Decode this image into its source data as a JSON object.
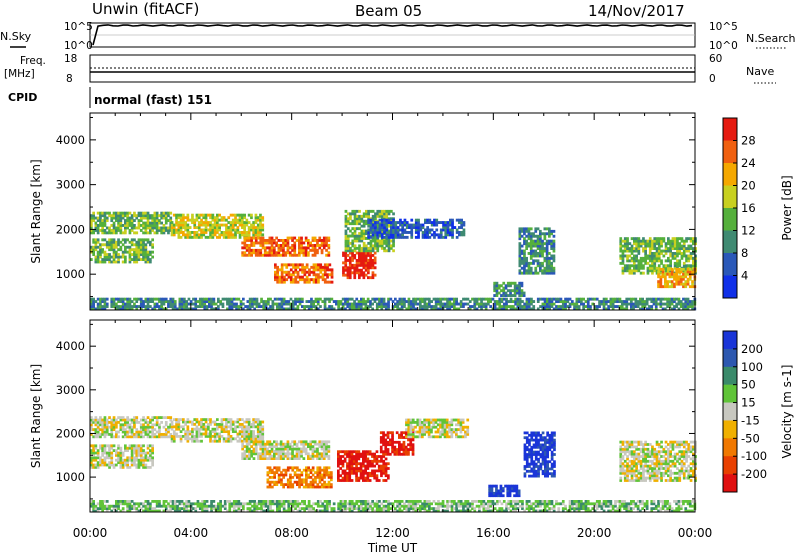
{
  "header": {
    "station": "Unwin (fitACF)",
    "beam": "Beam 05",
    "date": "14/Nov/2017"
  },
  "control_panels": {
    "nsky_label": "N.Sky",
    "nsky_ticks": [
      "10^5",
      "10^0"
    ],
    "nsearch_label": "N.Search",
    "nsearch_ticks": [
      "10^5",
      "10^0"
    ],
    "freq_label": "Freq.",
    "freq_unit": "[MHz]",
    "freq_ticks": [
      "18",
      "8"
    ],
    "nave_label": "Nave",
    "nave_ticks": [
      "60",
      "0"
    ],
    "cpid_label": "CPID",
    "cpid_value": "normal (fast) 151"
  },
  "chart_data": [
    {
      "type": "heatmap",
      "name": "power-panel",
      "xlabel": "",
      "ylabel": "Slant Range [km]",
      "x_range_hours": [
        0,
        24
      ],
      "ylim": [
        200,
        4600
      ],
      "yticks": [
        1000,
        2000,
        3000,
        4000
      ],
      "colorbar": {
        "label": "Power [dB]",
        "ticks": [
          "4",
          "8",
          "12",
          "16",
          "20",
          "24",
          "28"
        ],
        "colors": [
          "#1030e8",
          "#2a58b8",
          "#3f8a72",
          "#55b03c",
          "#c8d020",
          "#f5a800",
          "#f06010",
          "#e51a10"
        ]
      },
      "echo_regions": [
        {
          "t": [
            0.0,
            24.0
          ],
          "r": [
            200,
            450
          ],
          "level": 2
        },
        {
          "t": [
            0.0,
            3.2
          ],
          "r": [
            1900,
            2350
          ],
          "level": 3
        },
        {
          "t": [
            0.0,
            2.5
          ],
          "r": [
            1250,
            1750
          ],
          "level": 3
        },
        {
          "t": [
            3.2,
            6.8
          ],
          "r": [
            1800,
            2350
          ],
          "level": 4
        },
        {
          "t": [
            6.0,
            9.5
          ],
          "r": [
            1400,
            1800
          ],
          "level": 6
        },
        {
          "t": [
            7.3,
            9.6
          ],
          "r": [
            800,
            1200
          ],
          "level": 6
        },
        {
          "t": [
            10.0,
            11.3
          ],
          "r": [
            900,
            1500
          ],
          "level": 7
        },
        {
          "t": [
            10.1,
            12.0
          ],
          "r": [
            1500,
            2400
          ],
          "level": 3
        },
        {
          "t": [
            11.0,
            14.8
          ],
          "r": [
            1800,
            2200
          ],
          "level": 1
        },
        {
          "t": [
            16.0,
            17.2
          ],
          "r": [
            500,
            800
          ],
          "level": 2
        },
        {
          "t": [
            17.0,
            18.4
          ],
          "r": [
            1000,
            2000
          ],
          "level": 2
        },
        {
          "t": [
            21.0,
            24.0
          ],
          "r": [
            1000,
            1800
          ],
          "level": 3
        },
        {
          "t": [
            22.5,
            24.0
          ],
          "r": [
            700,
            1100
          ],
          "level": 5
        }
      ]
    },
    {
      "type": "heatmap",
      "name": "velocity-panel",
      "xlabel": "Time UT",
      "ylabel": "Slant Range [km]",
      "x_range_hours": [
        0,
        24
      ],
      "ylim": [
        200,
        4600
      ],
      "yticks": [
        1000,
        2000,
        3000,
        4000
      ],
      "xticks": [
        "00:00",
        "04:00",
        "08:00",
        "12:00",
        "16:00",
        "20:00",
        "00:00"
      ],
      "colorbar": {
        "label": "Velocity [m s-1]",
        "ticks": [
          "200",
          "100",
          "50",
          "15",
          "-15",
          "-50",
          "-100",
          "-200"
        ],
        "colors": [
          "#1a35d8",
          "#2d58b0",
          "#3a8a6a",
          "#60c438",
          "#c8c8c0",
          "#f0b000",
          "#f07800",
          "#e84000",
          "#e01010"
        ]
      },
      "echo_regions": [
        {
          "t": [
            0.0,
            24.0
          ],
          "r": [
            200,
            450
          ],
          "level": 3
        },
        {
          "t": [
            0.0,
            3.2
          ],
          "r": [
            1900,
            2350
          ],
          "level": 4
        },
        {
          "t": [
            0.0,
            2.5
          ],
          "r": [
            1200,
            1750
          ],
          "level": 4
        },
        {
          "t": [
            3.2,
            6.8
          ],
          "r": [
            1800,
            2350
          ],
          "level": 4
        },
        {
          "t": [
            6.0,
            9.5
          ],
          "r": [
            1400,
            1800
          ],
          "level": 4
        },
        {
          "t": [
            7.0,
            9.6
          ],
          "r": [
            750,
            1200
          ],
          "level": 6
        },
        {
          "t": [
            9.8,
            11.8
          ],
          "r": [
            900,
            1600
          ],
          "level": 8
        },
        {
          "t": [
            11.5,
            12.8
          ],
          "r": [
            1500,
            2000
          ],
          "level": 8
        },
        {
          "t": [
            12.5,
            15.0
          ],
          "r": [
            1900,
            2300
          ],
          "level": 4
        },
        {
          "t": [
            15.8,
            17.0
          ],
          "r": [
            550,
            800
          ],
          "level": 0
        },
        {
          "t": [
            17.2,
            18.4
          ],
          "r": [
            1000,
            2000
          ],
          "level": 0
        },
        {
          "t": [
            21.0,
            24.0
          ],
          "r": [
            900,
            1800
          ],
          "level": 4
        }
      ]
    }
  ]
}
